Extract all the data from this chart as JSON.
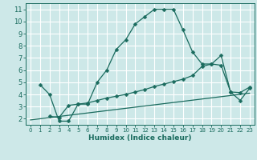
{
  "xlabel": "Humidex (Indice chaleur)",
  "xlim": [
    -0.5,
    23.5
  ],
  "ylim": [
    1.5,
    11.5
  ],
  "yticks": [
    2,
    3,
    4,
    5,
    6,
    7,
    8,
    9,
    10,
    11
  ],
  "xticks": [
    0,
    1,
    2,
    3,
    4,
    5,
    6,
    7,
    8,
    9,
    10,
    11,
    12,
    13,
    14,
    15,
    16,
    17,
    18,
    19,
    20,
    21,
    22,
    23
  ],
  "bg_color": "#cde8e8",
  "grid_color": "#ffffff",
  "line_color": "#1a6b5e",
  "line1_x": [
    1,
    2,
    3,
    4,
    5,
    6,
    7,
    8,
    9,
    10,
    11,
    12,
    13,
    14,
    15,
    16,
    17,
    18,
    19,
    20,
    21,
    22,
    23
  ],
  "line1_y": [
    4.8,
    4.0,
    1.8,
    1.8,
    3.2,
    3.2,
    5.0,
    6.0,
    7.7,
    8.5,
    9.8,
    10.4,
    11.0,
    11.0,
    11.0,
    9.3,
    7.5,
    6.5,
    6.5,
    7.2,
    4.2,
    3.5,
    4.5
  ],
  "line2_x": [
    2,
    3,
    4,
    5,
    6,
    7,
    8,
    9,
    10,
    11,
    12,
    13,
    14,
    15,
    16,
    17,
    18,
    19,
    20,
    21,
    22,
    23
  ],
  "line2_y": [
    2.2,
    2.1,
    3.1,
    3.2,
    3.3,
    3.5,
    3.7,
    3.85,
    4.0,
    4.2,
    4.4,
    4.65,
    4.85,
    5.05,
    5.25,
    5.55,
    6.3,
    6.5,
    6.4,
    4.2,
    4.15,
    4.6
  ],
  "line3_x": [
    0,
    23
  ],
  "line3_y": [
    1.9,
    4.1
  ]
}
